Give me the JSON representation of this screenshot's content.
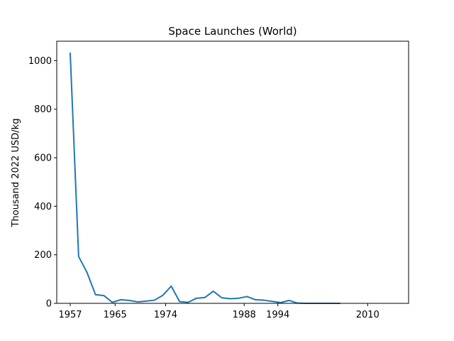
{
  "chart_data": {
    "type": "line",
    "title": "Space Launches (World)",
    "xlabel": "",
    "ylabel": "Thousand 2022 USD/kg",
    "grid": false,
    "legend": "none",
    "xlim": [
      1954.6,
      2017.3
    ],
    "ylim": [
      0,
      1080
    ],
    "x_ticks": [
      1957,
      1965,
      1974,
      1988,
      1994,
      2010
    ],
    "x_tick_labels": [
      "1957",
      "1965",
      "1974",
      "1988",
      "1994",
      "2010"
    ],
    "y_ticks": [
      0,
      200,
      400,
      600,
      800,
      1000
    ],
    "y_tick_labels": [
      "0",
      "200",
      "400",
      "600",
      "800",
      "1000"
    ],
    "series": [
      {
        "name": "",
        "color": "#1f77b4",
        "x": [
          1957,
          1958.5,
          1960,
          1961.5,
          1963,
          1964.5,
          1966,
          1967.5,
          1969,
          1970.5,
          1972,
          1973.5,
          1975,
          1976.5,
          1978,
          1979.5,
          1981,
          1982.5,
          1984,
          1985.5,
          1987,
          1988.5,
          1990,
          1991.5,
          1993,
          1994.5,
          1996,
          1997.5,
          1999,
          2000.5,
          2002,
          2003.5,
          2005
        ],
        "values": [
          1030,
          193,
          127,
          36,
          32,
          4,
          15,
          12,
          6,
          9,
          13,
          33,
          71,
          7,
          4,
          21,
          24,
          50,
          23,
          19,
          21,
          28,
          15,
          13,
          8,
          3,
          12,
          1,
          0,
          0,
          0,
          0,
          0
        ]
      }
    ]
  }
}
